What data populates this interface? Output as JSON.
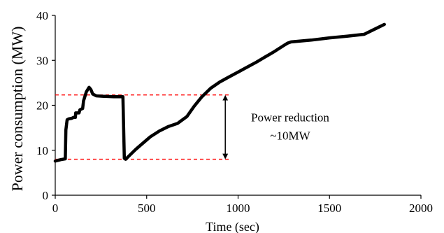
{
  "chart_data": {
    "type": "line",
    "title": "",
    "xlabel": "Time (sec)",
    "ylabel": "Power consumption (MW)",
    "xlim": [
      0,
      2000
    ],
    "ylim": [
      0,
      40
    ],
    "xticks": [
      0,
      500,
      1000,
      1500,
      2000
    ],
    "yticks": [
      0,
      10,
      20,
      30,
      40
    ],
    "grid": false,
    "series": [
      {
        "name": "",
        "color": "#000000",
        "x": [
          0,
          30,
          55,
          58,
          65,
          75,
          90,
          100,
          110,
          112,
          130,
          135,
          150,
          155,
          170,
          185,
          195,
          205,
          225,
          260,
          320,
          370,
          375,
          378,
          385,
          395,
          410,
          440,
          480,
          520,
          570,
          620,
          670,
          720,
          760,
          800,
          850,
          900,
          950,
          1000,
          1050,
          1100,
          1150,
          1200,
          1250,
          1270,
          1290,
          1400,
          1500,
          1600,
          1690,
          1730,
          1770,
          1800
        ],
        "y": [
          7.6,
          7.9,
          8.1,
          14.5,
          16.8,
          17.0,
          17.1,
          17.3,
          17.3,
          18.3,
          18.3,
          19.0,
          19.3,
          21.0,
          23.0,
          24.0,
          23.5,
          22.5,
          22.1,
          22.0,
          21.9,
          21.9,
          13.0,
          8.2,
          8.0,
          8.4,
          9.0,
          10.2,
          11.6,
          13.0,
          14.3,
          15.3,
          16.0,
          17.5,
          19.8,
          21.8,
          23.8,
          25.2,
          26.3,
          27.4,
          28.5,
          29.6,
          30.8,
          32.0,
          33.3,
          33.8,
          34.1,
          34.5,
          35.0,
          35.4,
          35.8,
          36.6,
          37.4,
          38.0
        ]
      }
    ],
    "reference_lines": [
      {
        "y": 22.3,
        "x_start": 0,
        "x_end": 950,
        "color": "#ff0000",
        "style": "dashed"
      },
      {
        "y": 8.0,
        "x_start": 0,
        "x_end": 950,
        "color": "#ff0000",
        "style": "dashed"
      }
    ],
    "annotation": {
      "x": 930,
      "y_top": 22.3,
      "y_bottom": 8.0,
      "lines": [
        "Power reduction",
        "~10MW"
      ]
    }
  }
}
